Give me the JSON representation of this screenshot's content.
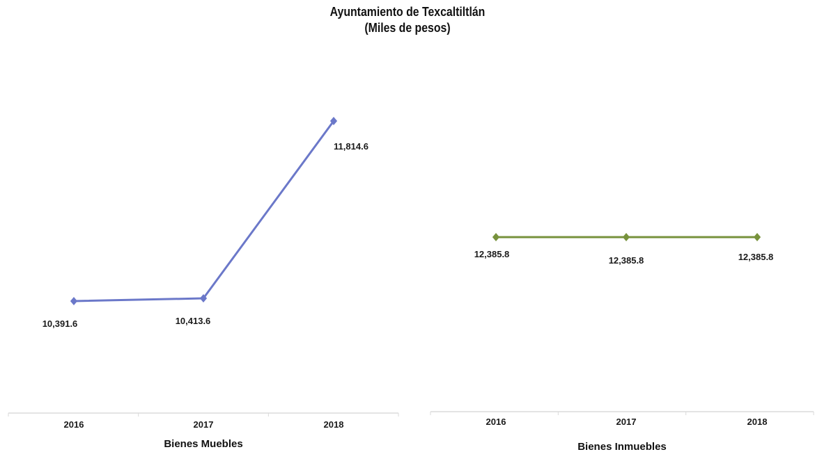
{
  "title": "Ayuntamiento de Texcaltiltlán",
  "subtitle": "(Miles de pesos)",
  "chart_data": [
    {
      "type": "line",
      "categories": [
        "2016",
        "2017",
        "2018"
      ],
      "series": [
        {
          "values": [
            10391.6,
            10413.6,
            11814.6
          ],
          "labels": [
            "10,391.6",
            "10,413.6",
            "11,814.6"
          ]
        }
      ],
      "xlabel": "Bienes Muebles",
      "ylabel": "",
      "color": "#6b78c9",
      "grid": false,
      "legend": "none"
    },
    {
      "type": "line",
      "categories": [
        "2016",
        "2017",
        "2018"
      ],
      "series": [
        {
          "values": [
            12385.8,
            12385.8,
            12385.8
          ],
          "labels": [
            "12,385.8",
            "12,385.8",
            "12,385.8"
          ]
        }
      ],
      "xlabel": "Bienes Inmuebles",
      "ylabel": "",
      "color": "#77923c",
      "grid": false,
      "legend": "none"
    }
  ]
}
